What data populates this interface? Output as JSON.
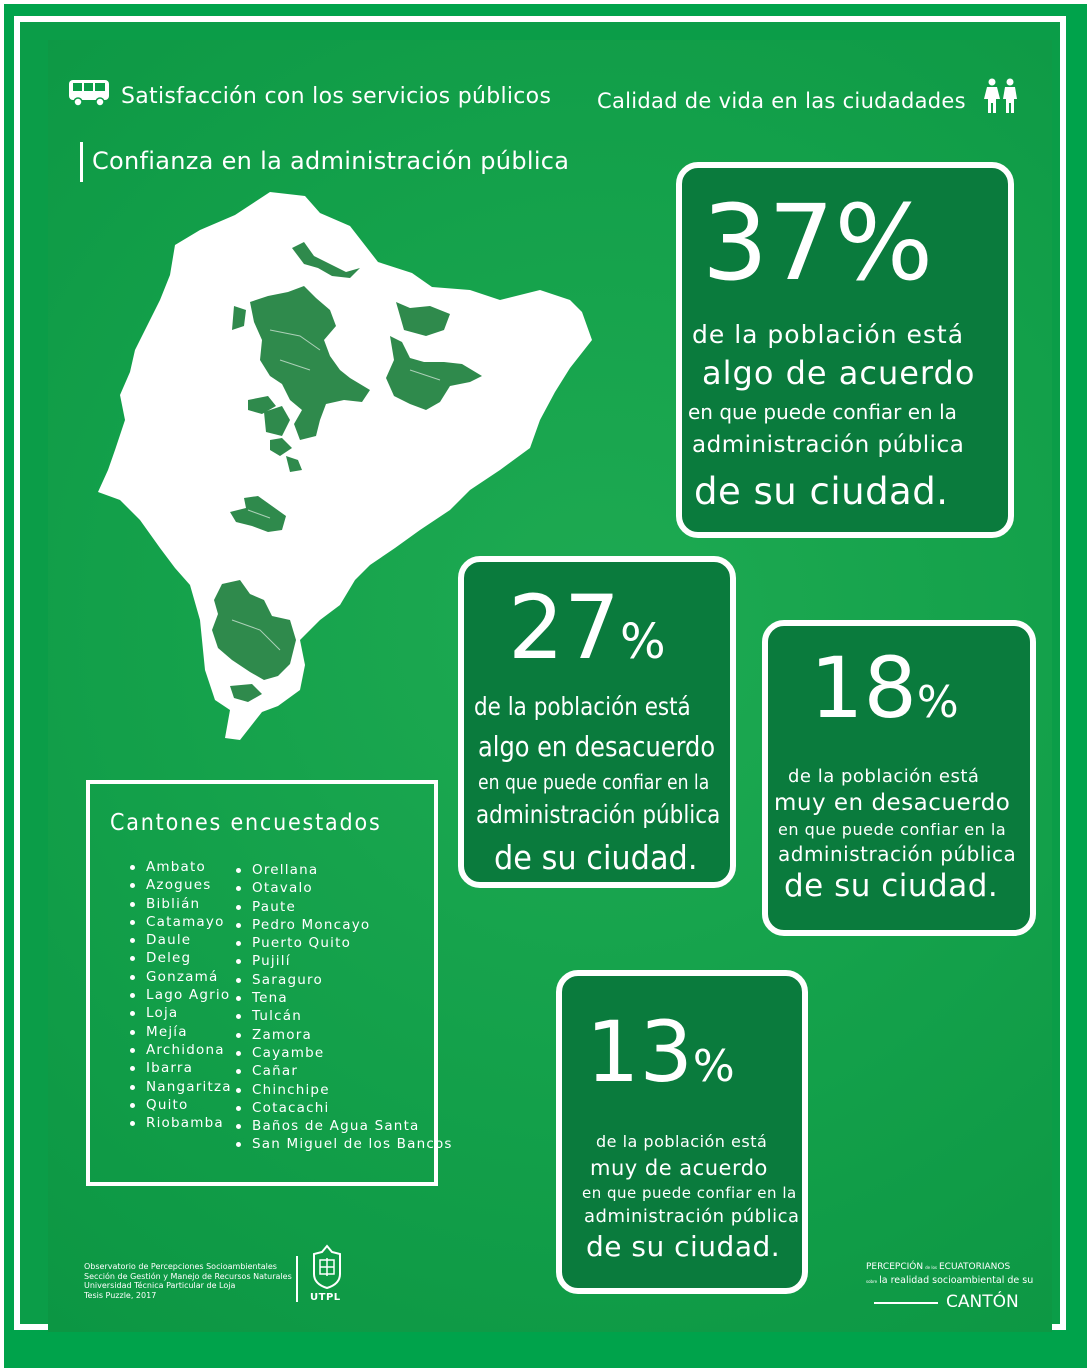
{
  "header": {
    "left_title": "Satisfacción con los servicios públicos",
    "right_title": "Calidad de vida en las ciudadades",
    "section_title": "Confianza en la administración pública"
  },
  "stats": [
    {
      "number": "37",
      "percent": "%",
      "line1": "de la población está",
      "line2": "algo de acuerdo",
      "line3": "en que puede confiar en la",
      "line4": "administración pública",
      "line5": "de su ciudad."
    },
    {
      "number": "27",
      "percent": "%",
      "line1": "de la población está",
      "line2": "algo en desacuerdo",
      "line3": "en que puede confiar en la",
      "line4": "administración pública",
      "line5": "de su ciudad."
    },
    {
      "number": "18",
      "percent": "%",
      "line1": "de la población está",
      "line2": "muy en desacuerdo",
      "line3": "en que puede confiar en la",
      "line4": "administración pública",
      "line5": "de su ciudad."
    },
    {
      "number": "13",
      "percent": "%",
      "line1": "de la población está",
      "line2": "muy de acuerdo",
      "line3": "en que puede confiar en la",
      "line4": "administración pública",
      "line5": "de su ciudad."
    }
  ],
  "cantones": {
    "title": "Cantones encuestados",
    "col1": [
      "Ambato",
      "Azogues",
      "Biblián",
      "Catamayo",
      "Daule",
      "Deleg",
      "Gonzamá",
      "Lago Agrio",
      "Loja",
      "Mejía",
      "Archidona",
      "Ibarra",
      "Nangaritza",
      "Quito",
      "Riobamba"
    ],
    "col2": [
      "Orellana",
      "Otavalo",
      "Paute",
      "Pedro Moncayo",
      "Puerto Quito",
      "Pujilí",
      "Saraguro",
      "Tena",
      "Tulcán",
      "Zamora",
      "Cayambe",
      "Cañar",
      "Chinchipe",
      "Cotacachi",
      "Baños de Agua Santa",
      "San Miguel de los Bancos"
    ]
  },
  "footer": {
    "line1": "Observatorio de Percepciones Socioambientales",
    "line2": "Sección de Gestión y Manejo de Recursos Naturales",
    "line3": "Universidad Técnica Particular de Loja",
    "line4": "Tesis Puzzle, 2017",
    "utpl": "UTPL",
    "brand_a": "PERCEPCIÓN",
    "brand_small": "de los",
    "brand_b": "ECUATORIANOS",
    "brand_small2": "sobre",
    "brand_c": "la realidad socioambiental de su",
    "brand_d": "CANTÓN"
  },
  "icons": {
    "left": "bus-icon",
    "right": "people-icon",
    "map": "ecuador-map-icon",
    "logo": "utpl-crest-icon"
  },
  "colors": {
    "background": "#0b9d48",
    "box": "#0a7b3d",
    "text": "#ffffff",
    "map": "#ffffff",
    "map_region": "#2f8a4c"
  }
}
